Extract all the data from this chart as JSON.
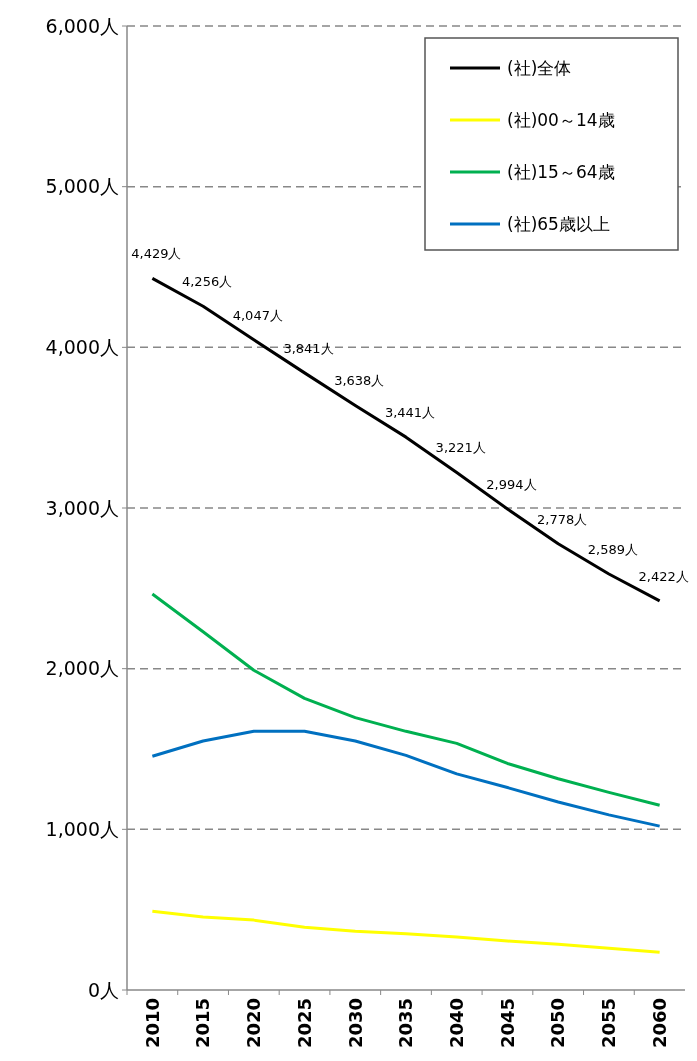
{
  "chart_data": {
    "type": "line",
    "categories": [
      "2010",
      "2015",
      "2020",
      "2025",
      "2030",
      "2035",
      "2040",
      "2045",
      "2050",
      "2055",
      "2060"
    ],
    "series": [
      {
        "name": "(社)全体",
        "color": "#000000",
        "values": [
          4429,
          4256,
          4047,
          3841,
          3638,
          3441,
          3221,
          2994,
          2778,
          2589,
          2422
        ],
        "value_labels": [
          "4,429人",
          "4,256人",
          "4,047人",
          "3,841人",
          "3,638人",
          "3,441人",
          "3,221人",
          "2,994人",
          "2,778人",
          "2,589人",
          "2,422人"
        ]
      },
      {
        "name": "(社)00～14歳",
        "color": "#ffff00",
        "values": [
          490,
          455,
          435,
          390,
          365,
          350,
          330,
          305,
          285,
          260,
          235
        ]
      },
      {
        "name": "(社)15～64歳",
        "color": "#00b050",
        "values": [
          2465,
          2230,
          1990,
          1815,
          1695,
          1610,
          1535,
          1410,
          1315,
          1230,
          1150
        ]
      },
      {
        "name": "(社)65歳以上",
        "color": "#0070c0",
        "values": [
          1455,
          1550,
          1610,
          1610,
          1550,
          1460,
          1345,
          1260,
          1170,
          1090,
          1020
        ]
      }
    ],
    "ylim": [
      0,
      6000
    ],
    "yticks": [
      {
        "value": 0,
        "label": "0人"
      },
      {
        "value": 1000,
        "label": "1,000人"
      },
      {
        "value": 2000,
        "label": "2,000人"
      },
      {
        "value": 3000,
        "label": "3,000人"
      },
      {
        "value": 4000,
        "label": "4,000人"
      },
      {
        "value": 5000,
        "label": "5,000人"
      },
      {
        "value": 6000,
        "label": "6,000人"
      }
    ],
    "grid": "y",
    "legend": "top right",
    "marker": "none",
    "line_style": "solid"
  }
}
